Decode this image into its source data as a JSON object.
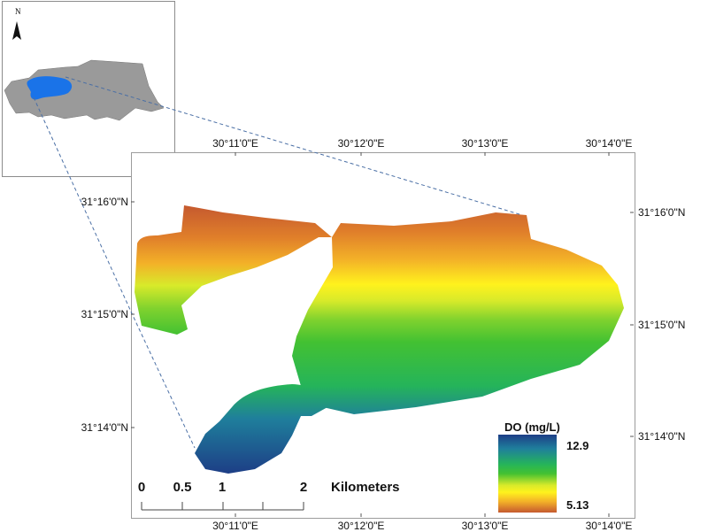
{
  "inset": {
    "north_label": "N",
    "colors": {
      "governorate": "#9a9a9a",
      "lake": "#1a73e8",
      "outline": "#555555"
    }
  },
  "graticule": {
    "top_labels": [
      "30°11'0\"E",
      "30°12'0\"E",
      "30°13'0\"E",
      "30°14'0\"E"
    ],
    "bottom_labels": [
      "30°11'0\"E",
      "30°12'0\"E",
      "30°13'0\"E",
      "30°14'0\"E"
    ],
    "left_labels": [
      "31°16'0\"N",
      "31°15'0\"N",
      "31°14'0\"N"
    ],
    "right_labels": [
      "31°16'0\"N",
      "31°15'0\"N",
      "31°14'0\"N"
    ]
  },
  "legend": {
    "title": "DO (mg/L)",
    "max": "12.9",
    "min": "5.13",
    "colors": [
      "#1d3e86",
      "#1f7f9c",
      "#25b45a",
      "#43c132",
      "#d8ea2a",
      "#fff21d",
      "#f3b128",
      "#c5592f"
    ]
  },
  "scale_bar": {
    "ticks": [
      "0",
      "0.5",
      "1",
      "2"
    ],
    "unit": "Kilometers"
  }
}
